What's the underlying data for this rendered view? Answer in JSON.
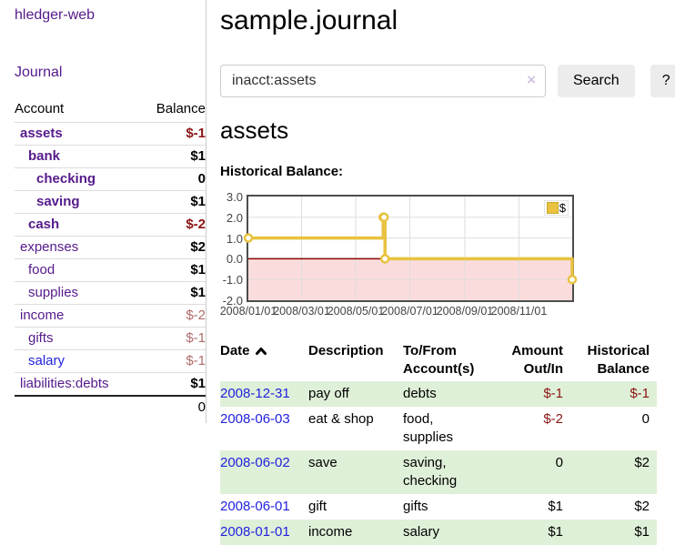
{
  "app": {
    "brand": "hledger-web"
  },
  "colors": {
    "link_purple": "#551a8b",
    "link_blue": "#2222dd",
    "negative_dark": "#8b1414",
    "negative_dim": "#b06b6b",
    "row_stripe_green": "#dff0d8",
    "chart_gold": "#e8c240",
    "negative_region_pink": "#fbdcdc",
    "zero_line_red": "#8b0000",
    "button_gray": "#ececec"
  },
  "sidebar": {
    "journal_link": "Journal",
    "table": {
      "account_header": "Account",
      "balance_header": "Balance"
    },
    "accounts": [
      {
        "name": "assets",
        "balance": "$-1",
        "indent": 0,
        "bold": true,
        "dim": false,
        "negative": true,
        "link_color": "purple"
      },
      {
        "name": "bank",
        "balance": "$1",
        "indent": 1,
        "bold": true,
        "dim": false,
        "negative": false,
        "link_color": "purple"
      },
      {
        "name": "checking",
        "balance": "0",
        "indent": 2,
        "bold": true,
        "dim": false,
        "negative": false,
        "link_color": "purple"
      },
      {
        "name": "saving",
        "balance": "$1",
        "indent": 2,
        "bold": true,
        "dim": false,
        "negative": false,
        "link_color": "purple"
      },
      {
        "name": "cash",
        "balance": "$-2",
        "indent": 1,
        "bold": true,
        "dim": false,
        "negative": true,
        "link_color": "purple"
      },
      {
        "name": "expenses",
        "balance": "$2",
        "indent": 0,
        "bold": false,
        "dim": false,
        "negative": false,
        "link_color": "purple"
      },
      {
        "name": "food",
        "balance": "$1",
        "indent": 1,
        "bold": false,
        "dim": false,
        "negative": false,
        "link_color": "purple"
      },
      {
        "name": "supplies",
        "balance": "$1",
        "indent": 1,
        "bold": false,
        "dim": false,
        "negative": false,
        "link_color": "purple"
      },
      {
        "name": "income",
        "balance": "$-2",
        "indent": 0,
        "bold": false,
        "dim": true,
        "negative": true,
        "link_color": "purple"
      },
      {
        "name": "gifts",
        "balance": "$-1",
        "indent": 1,
        "bold": false,
        "dim": true,
        "negative": true,
        "link_color": "purple"
      },
      {
        "name": "salary",
        "balance": "$-1",
        "indent": 1,
        "bold": false,
        "dim": true,
        "negative": true,
        "link_color": "blue"
      },
      {
        "name": "liabilities:debts",
        "balance": "$1",
        "indent": 0,
        "bold": false,
        "dim": false,
        "negative": false,
        "link_color": "purple"
      }
    ],
    "total": "0"
  },
  "header": {
    "title": "sample.journal"
  },
  "search": {
    "value": "inacct:assets",
    "clear_icon": "×",
    "button": "Search",
    "help_button": "?"
  },
  "account_page": {
    "heading": "assets"
  },
  "chart_data": {
    "type": "line",
    "step": true,
    "title": "Historical Balance:",
    "x_range": [
      "2008-01-01",
      "2008-12-31"
    ],
    "ylim": [
      -2,
      3
    ],
    "y_ticks": [
      3.0,
      2.0,
      1.0,
      0.0,
      -1.0,
      -2.0
    ],
    "x_ticks": [
      "2008/01/01",
      "2008/03/01",
      "2008/05/01",
      "2008/07/01",
      "2008/09/01",
      "2008/11/01"
    ],
    "grid": true,
    "grid_color": "#dddddd",
    "negative_fill": "#fbdcdc",
    "zero_line_color": "#8b0000",
    "legend_position": "top-right",
    "series": [
      {
        "name": "$",
        "color": "#e8c240",
        "points": [
          {
            "date": "2008-01-01",
            "value": 1
          },
          {
            "date": "2008-06-01",
            "value": 2
          },
          {
            "date": "2008-06-02",
            "value": 2
          },
          {
            "date": "2008-06-03",
            "value": 0
          },
          {
            "date": "2008-12-31",
            "value": -1
          }
        ]
      }
    ]
  },
  "register": {
    "columns": [
      {
        "label": "Date",
        "align": "left",
        "sorted": "asc"
      },
      {
        "label": "Description",
        "align": "left"
      },
      {
        "label": "To/From Account(s)",
        "align": "left"
      },
      {
        "label": "Amount Out/In",
        "align": "right"
      },
      {
        "label": "Historical Balance",
        "align": "right"
      }
    ],
    "rows": [
      {
        "date": "2008-12-31",
        "description": "pay off",
        "accounts": "debts",
        "amount": "$-1",
        "balance": "$-1",
        "amount_negative": true,
        "balance_negative": true
      },
      {
        "date": "2008-06-03",
        "description": "eat & shop",
        "accounts": "food, supplies",
        "amount": "$-2",
        "balance": "0",
        "amount_negative": true,
        "balance_negative": false
      },
      {
        "date": "2008-06-02",
        "description": "save",
        "accounts": "saving, checking",
        "amount": "0",
        "balance": "$2",
        "amount_negative": false,
        "balance_negative": false
      },
      {
        "date": "2008-06-01",
        "description": "gift",
        "accounts": "gifts",
        "amount": "$1",
        "balance": "$2",
        "amount_negative": false,
        "balance_negative": false
      },
      {
        "date": "2008-01-01",
        "description": "income",
        "accounts": "salary",
        "amount": "$1",
        "balance": "$1",
        "amount_negative": false,
        "balance_negative": false
      }
    ]
  }
}
